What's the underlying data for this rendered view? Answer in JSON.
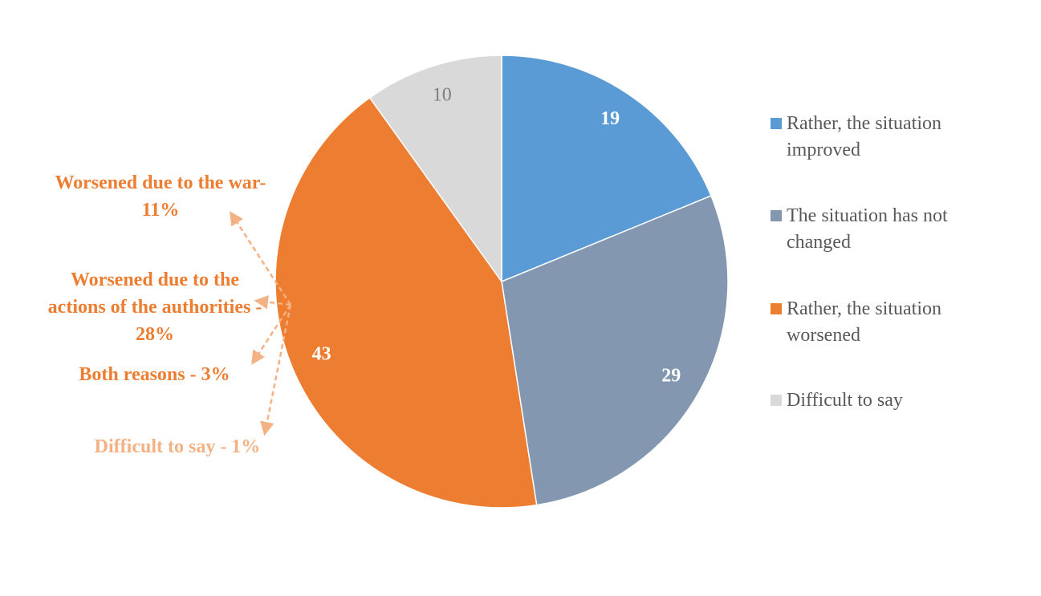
{
  "chart_data": {
    "type": "pie",
    "categories": [
      "Rather, the situation improved",
      "The situation has not changed",
      "Rather, the situation worsened",
      "Difficult to say"
    ],
    "values": [
      19,
      29,
      43,
      10
    ],
    "colors": [
      "#5b9bd5",
      "#8497b0",
      "#ed7d31",
      "#d9d9d9"
    ],
    "label_colors": [
      "#ffffff",
      "#ffffff",
      "#ffffff",
      "#7f7f7f"
    ],
    "legend": "right",
    "annotations": [
      {
        "text": "Worsened due to the war- 11%",
        "color": "#ed7d31"
      },
      {
        "text": "Worsened due to the actions of the authorities - 28%",
        "color": "#ed7d31"
      },
      {
        "text": "Both reasons - 3%",
        "color": "#ed7d31"
      },
      {
        "text": "Difficult to say - 1%",
        "color": "#f4b183"
      }
    ]
  }
}
